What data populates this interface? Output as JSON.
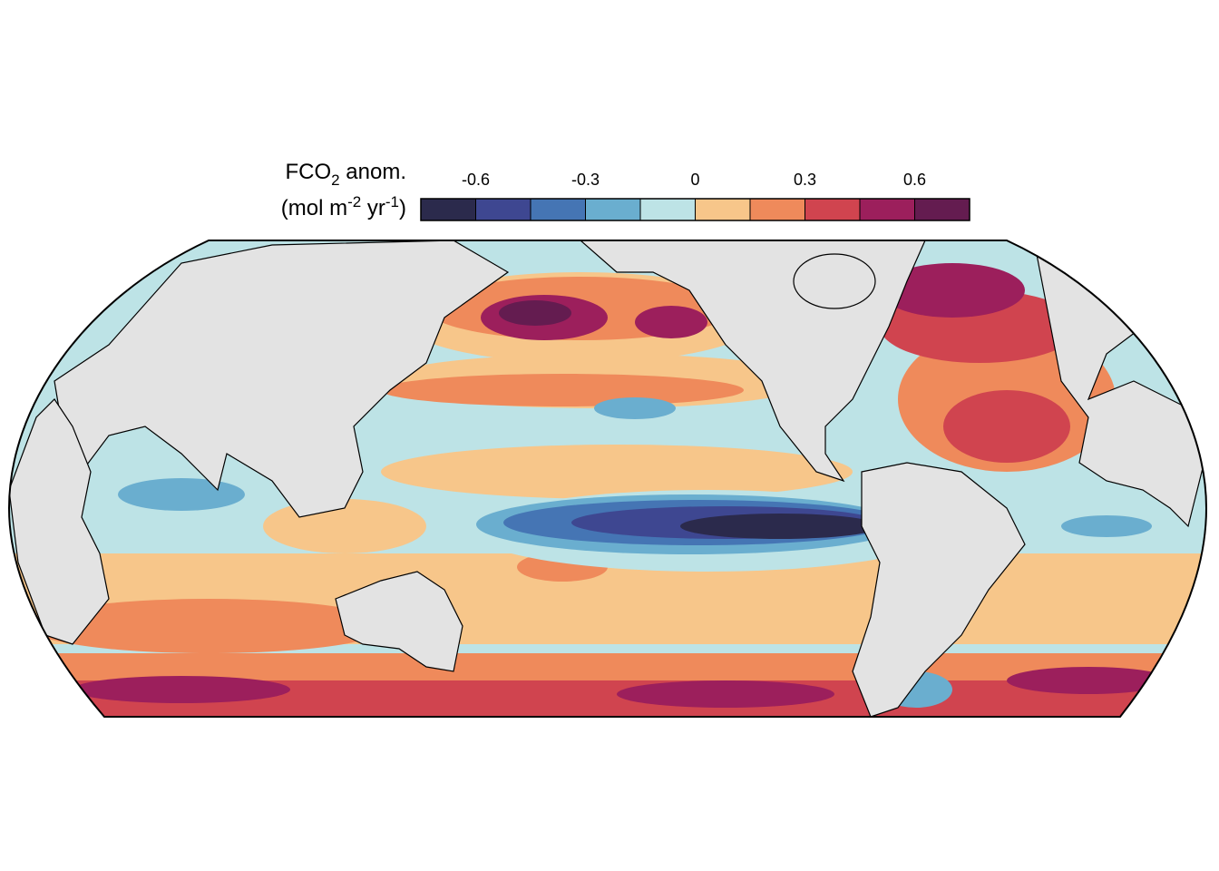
{
  "colorbar": {
    "label_lines": [
      [
        {
          "text": "FCO"
        },
        {
          "text": "2",
          "script": "sub"
        },
        {
          "text": " anom."
        }
      ],
      [
        {
          "text": "(mol m"
        },
        {
          "text": "-2",
          "script": "sup"
        },
        {
          "text": " yr"
        },
        {
          "text": "-1",
          "script": "sup"
        },
        {
          "text": ")"
        }
      ]
    ],
    "bounds": [
      -0.75,
      -0.6,
      -0.45,
      -0.3,
      -0.15,
      0,
      0.15,
      0.3,
      0.45,
      0.6,
      0.75
    ],
    "colors": [
      "#2b2a4c",
      "#3e4791",
      "#4575b4",
      "#6aaecf",
      "#bde3e6",
      "#f7c68a",
      "#ef8a5b",
      "#d0444f",
      "#9c1f5c",
      "#641c50"
    ],
    "ticks": [
      -0.6,
      -0.3,
      0,
      0.3,
      0.6
    ]
  }
}
